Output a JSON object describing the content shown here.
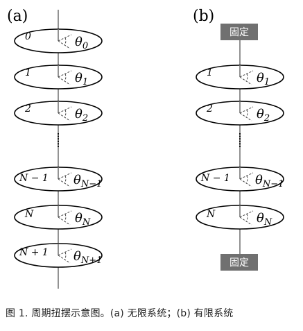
{
  "panels": [
    {
      "label": "(a)",
      "disks": [
        {
          "index": "0",
          "theta_sub": "0"
        },
        {
          "index": "1",
          "theta_sub": "1"
        },
        {
          "index": "2",
          "theta_sub": "2"
        },
        {
          "index": "N − 1",
          "theta_sub": "N−1"
        },
        {
          "index": "N",
          "theta_sub": "N"
        },
        {
          "index": "N + 1",
          "theta_sub": "N+1"
        }
      ]
    },
    {
      "label": "(b)",
      "fixed_top": "固定",
      "fixed_bottom": "固定",
      "disks": [
        {
          "index": "1",
          "theta_sub": "1"
        },
        {
          "index": "2",
          "theta_sub": "2"
        },
        {
          "index": "N − 1",
          "theta_sub": "N−1"
        },
        {
          "index": "N",
          "theta_sub": "N"
        }
      ]
    }
  ],
  "theta_symbol": "θ",
  "caption": "图 1.  周期扭摆示意图。(a) 无限系统；(b) 有限系统"
}
